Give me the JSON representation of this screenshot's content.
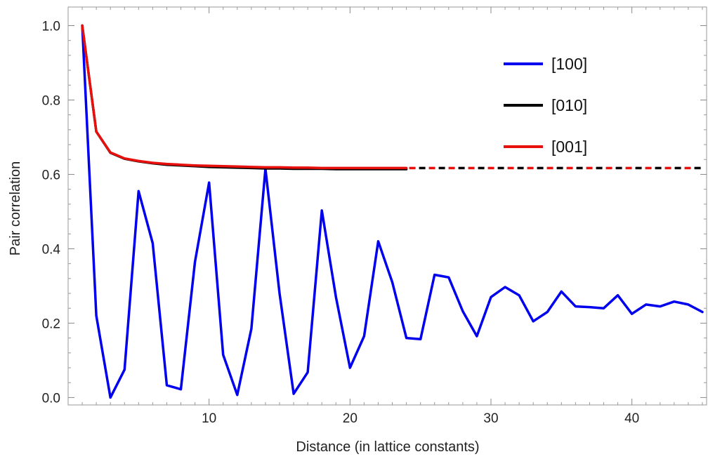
{
  "chart_data": {
    "type": "line",
    "title": "",
    "xlabel": "Distance (in lattice constants)",
    "ylabel": "Pair correlation",
    "xlim": [
      0,
      45.3
    ],
    "ylim": [
      -0.02,
      1.05
    ],
    "xticks": [
      10,
      20,
      30,
      40
    ],
    "yticks": [
      0.0,
      0.2,
      0.4,
      0.6,
      0.8,
      1.0
    ],
    "ytick_labels": [
      "0.0",
      "0.2",
      "0.4",
      "0.6",
      "0.8",
      "1.0"
    ],
    "grid": false,
    "legend_position": "top-right",
    "series": [
      {
        "name": "[100]",
        "color": "#0000ee",
        "x": [
          1,
          2,
          3,
          4,
          5,
          6,
          7,
          8,
          9,
          10,
          11,
          12,
          13,
          14,
          15,
          16,
          17,
          18,
          19,
          20,
          21,
          22,
          23,
          24,
          25,
          26,
          27,
          28,
          29,
          30,
          31,
          32,
          33,
          34,
          35,
          36,
          37,
          38,
          39,
          40,
          41,
          42,
          43,
          44,
          45
        ],
        "values": [
          1.0,
          0.22,
          0.0,
          0.075,
          0.555,
          0.415,
          0.033,
          0.022,
          0.365,
          0.578,
          0.115,
          0.007,
          0.185,
          0.615,
          0.28,
          0.01,
          0.068,
          0.503,
          0.27,
          0.08,
          0.165,
          0.42,
          0.31,
          0.16,
          0.157,
          0.33,
          0.323,
          0.232,
          0.165,
          0.27,
          0.297,
          0.275,
          0.205,
          0.23,
          0.285,
          0.245,
          0.243,
          0.24,
          0.275,
          0.225,
          0.25,
          0.245,
          0.258,
          0.25,
          0.23
        ]
      },
      {
        "name": "[010]",
        "color": "#000000",
        "x": [
          1,
          2,
          3,
          4,
          5,
          6,
          7,
          8,
          9,
          10,
          11,
          12,
          13,
          14,
          15,
          16,
          17,
          18,
          19,
          20,
          21,
          22,
          23,
          24
        ],
        "values": [
          1.0,
          0.715,
          0.658,
          0.642,
          0.635,
          0.63,
          0.626,
          0.624,
          0.622,
          0.62,
          0.619,
          0.618,
          0.617,
          0.616,
          0.616,
          0.615,
          0.615,
          0.615,
          0.614,
          0.614,
          0.614,
          0.614,
          0.614,
          0.614
        ],
        "extrapolation": 0.617
      },
      {
        "name": "[001]",
        "color": "#e8100c",
        "x": [
          1,
          2,
          3,
          4,
          5,
          6,
          7,
          8,
          9,
          10,
          11,
          12,
          13,
          14,
          15,
          16,
          17,
          18,
          19,
          20,
          21,
          22,
          23,
          24
        ],
        "values": [
          1.0,
          0.715,
          0.659,
          0.643,
          0.636,
          0.631,
          0.628,
          0.626,
          0.624,
          0.623,
          0.622,
          0.621,
          0.62,
          0.619,
          0.619,
          0.618,
          0.618,
          0.617,
          0.617,
          0.617,
          0.617,
          0.617,
          0.617,
          0.617
        ],
        "extrapolation": 0.617
      }
    ]
  }
}
